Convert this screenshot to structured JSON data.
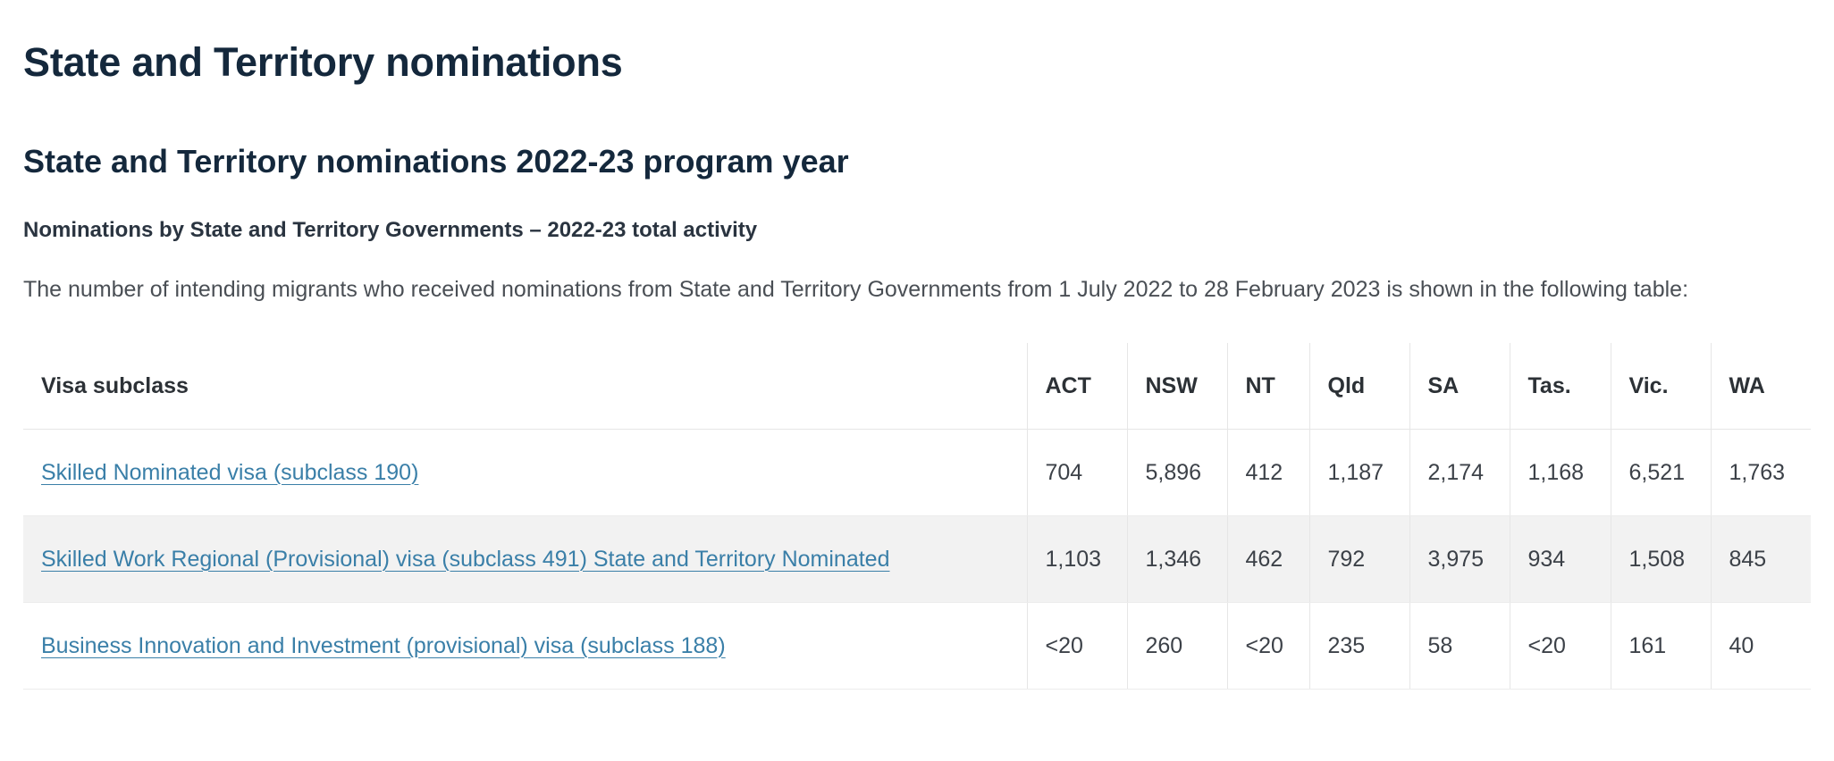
{
  "page_title": "State and Territory nominations",
  "section_title": "State and Territory nominations 2022-23 program year",
  "subsection_title": "Nominations by State and Territory Governments – 2022-23 total activity",
  "intro_text": "The number of intending migrants who received nominations from State and Territory Governments from 1 July 2022 to 28 February 2023 is shown in the following table:",
  "table": {
    "headers": [
      "Visa subclass",
      "ACT",
      "NSW",
      "NT",
      "Qld",
      "SA",
      "Tas.",
      "Vic.",
      "WA"
    ],
    "rows": [
      {
        "visa": "Skilled Nominated visa (subclass 190)",
        "values": [
          "704",
          "5,896",
          "412",
          "1,187",
          "2,174",
          "1,168",
          "6,521",
          "1,763"
        ]
      },
      {
        "visa": "Skilled Work Regional (Provisional) visa (subclass 491) State and Territory Nominated",
        "values": [
          "1,103",
          "1,346",
          "462",
          "792",
          "3,975",
          "934",
          "1,508",
          "845"
        ]
      },
      {
        "visa": "Business Innovation and Investment (provisional) visa (subclass 188)",
        "values": [
          "<20",
          "260",
          "<20",
          "235",
          "58",
          "<20",
          "161",
          "40"
        ]
      }
    ]
  },
  "colors": {
    "heading": "#14283c",
    "link": "#3a7fa8",
    "stripe": "#f2f2f2",
    "body_text": "#4a4f55"
  }
}
